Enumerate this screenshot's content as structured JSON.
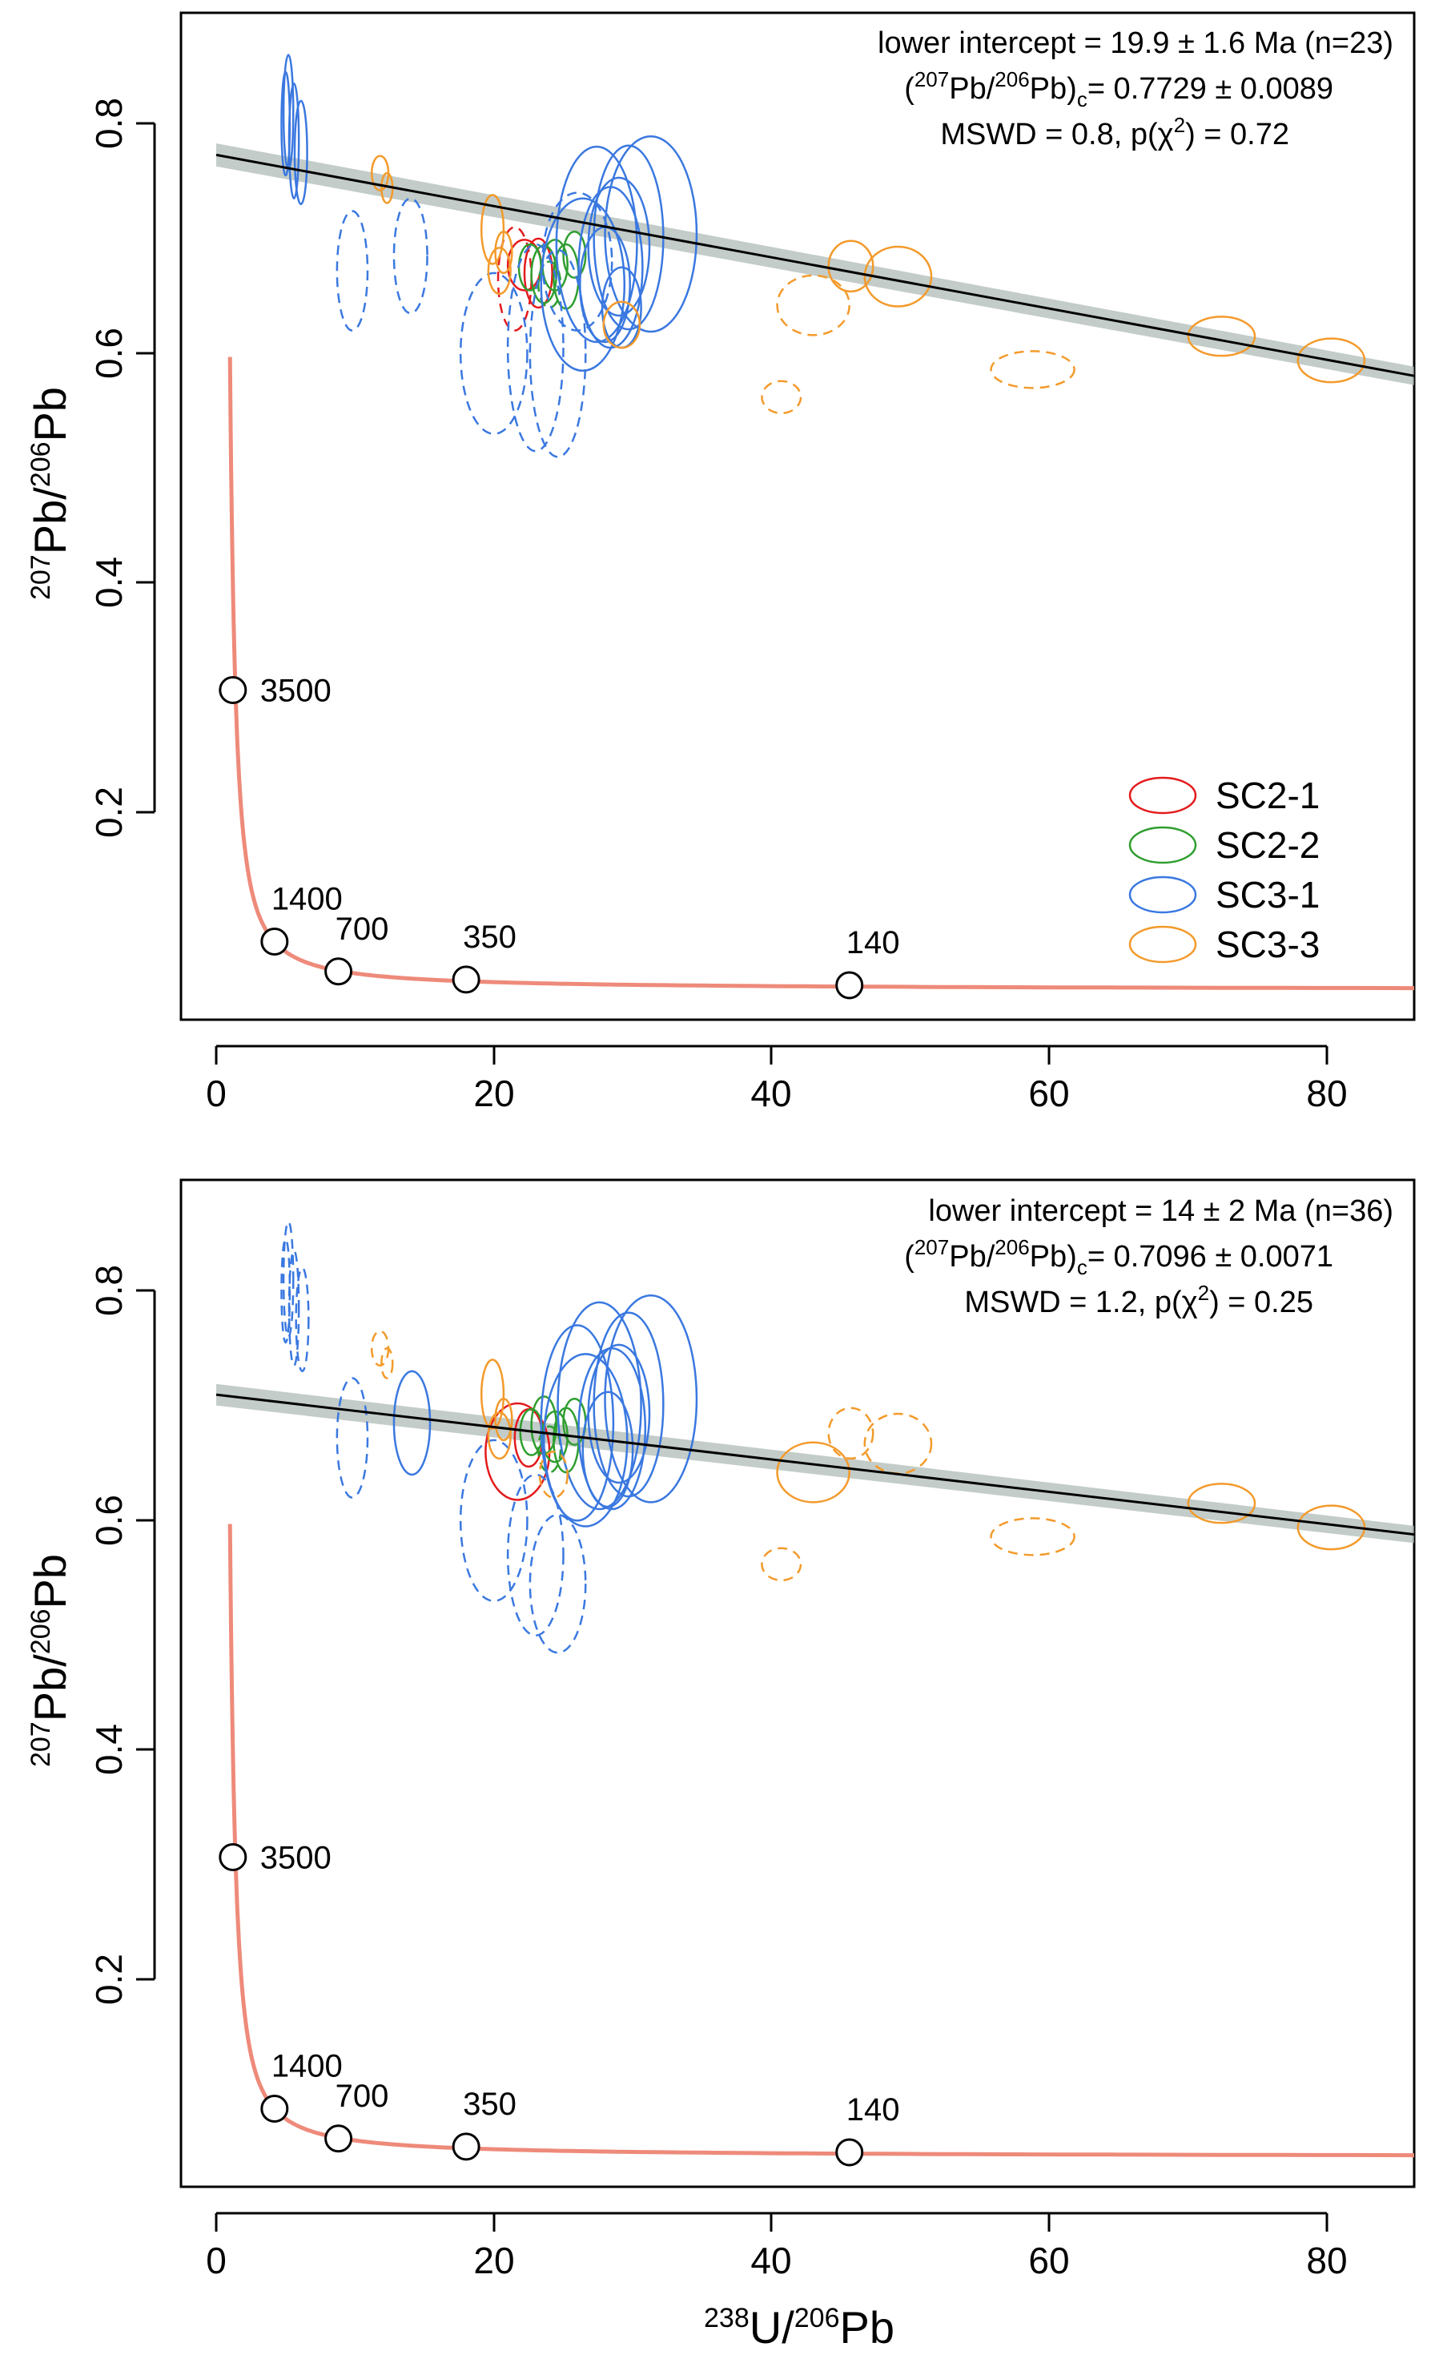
{
  "chart_data": [
    {
      "type": "scatter",
      "panel": "upper",
      "x_ticks": [
        0,
        20,
        40,
        60,
        80
      ],
      "y_ticks": [
        0.2,
        0.4,
        0.6,
        0.8
      ],
      "xlim": [
        -1.5,
        86.5
      ],
      "ylim": [
        -0.04,
        0.885
      ],
      "ylabel": {
        "sup": "207",
        "a": "Pb/",
        "sup2": "206",
        "b": "Pb"
      },
      "annotations": {
        "line1": "lower intercept = 19.9 ± 1.6 Ma (n=23)",
        "line2": {
          "open": "(",
          "sup1": "207",
          "mid": "Pb/",
          "sup2": "206",
          "close": "Pb)",
          "sub": "c",
          "rest": "= 0.7729 ± 0.0089"
        },
        "line3": {
          "pre": "MSWD = 0.8, p(χ",
          "sup": "2",
          "post": ") = 0.72"
        }
      },
      "legend": {
        "position": "right",
        "items": [
          {
            "label": "SC2-1",
            "color": "#e41a1c"
          },
          {
            "label": "SC2-2",
            "color": "#2f9e2f"
          },
          {
            "label": "SC3-1",
            "color": "#3a78e0"
          },
          {
            "label": "SC3-3",
            "color": "#f39a2b"
          }
        ]
      },
      "regression": {
        "intercept": 0.7729,
        "slope": -0.00223,
        "band": 0.008,
        "x_range": [
          0,
          86.5
        ]
      },
      "concordia_ages": [
        {
          "label": "3500",
          "x": 1.2,
          "y": 0.307
        },
        {
          "label": "1400",
          "x": 4.2,
          "y": 0.088
        },
        {
          "label": "700",
          "x": 8.8,
          "y": 0.062
        },
        {
          "label": "350",
          "x": 18.0,
          "y": 0.055
        },
        {
          "label": "140",
          "x": 45.6,
          "y": 0.05
        }
      ],
      "series": [
        {
          "name": "SC2-1",
          "points": [
            {
              "x": 21.5,
              "y": 0.665,
              "rx": 1.2,
              "ry": 0.045,
              "dashed": true
            },
            {
              "x": 23.2,
              "y": 0.67,
              "rx": 1.0,
              "ry": 0.03,
              "dashed": false
            },
            {
              "x": 22.2,
              "y": 0.677,
              "rx": 1.2,
              "ry": 0.022,
              "dashed": false
            }
          ]
        },
        {
          "name": "SC2-2",
          "points": [
            {
              "x": 22.6,
              "y": 0.675,
              "rx": 0.8,
              "ry": 0.02,
              "dashed": false
            },
            {
              "x": 23.6,
              "y": 0.669,
              "rx": 0.9,
              "ry": 0.025,
              "dashed": false
            },
            {
              "x": 24.4,
              "y": 0.677,
              "rx": 0.9,
              "ry": 0.022,
              "dashed": false
            },
            {
              "x": 25.2,
              "y": 0.667,
              "rx": 0.9,
              "ry": 0.028,
              "dashed": false
            },
            {
              "x": 24.0,
              "y": 0.66,
              "rx": 0.8,
              "ry": 0.02,
              "dashed": true
            },
            {
              "x": 25.8,
              "y": 0.686,
              "rx": 0.8,
              "ry": 0.02,
              "dashed": false
            }
          ]
        },
        {
          "name": "SC3-1",
          "points": [
            {
              "x": 5.2,
              "y": 0.81,
              "rx": 0.35,
              "ry": 0.05,
              "dashed": false
            },
            {
              "x": 5.6,
              "y": 0.785,
              "rx": 0.35,
              "ry": 0.05,
              "dashed": false
            },
            {
              "x": 6.1,
              "y": 0.775,
              "rx": 0.45,
              "ry": 0.045,
              "dashed": false
            },
            {
              "x": 5.0,
              "y": 0.8,
              "rx": 0.3,
              "ry": 0.045,
              "dashed": false
            },
            {
              "x": 9.8,
              "y": 0.672,
              "rx": 1.1,
              "ry": 0.052,
              "dashed": true
            },
            {
              "x": 14.0,
              "y": 0.685,
              "rx": 1.2,
              "ry": 0.05,
              "dashed": true
            },
            {
              "x": 20.0,
              "y": 0.6,
              "rx": 2.4,
              "ry": 0.07,
              "dashed": true
            },
            {
              "x": 23.0,
              "y": 0.605,
              "rx": 2.0,
              "ry": 0.09,
              "dashed": true
            },
            {
              "x": 24.6,
              "y": 0.6,
              "rx": 2.0,
              "ry": 0.09,
              "dashed": true
            },
            {
              "x": 26.0,
              "y": 0.68,
              "rx": 2.5,
              "ry": 0.06,
              "dashed": true
            },
            {
              "x": 26.4,
              "y": 0.66,
              "rx": 3.0,
              "ry": 0.075,
              "dashed": false
            },
            {
              "x": 27.4,
              "y": 0.695,
              "rx": 2.9,
              "ry": 0.085,
              "dashed": false
            },
            {
              "x": 28.4,
              "y": 0.675,
              "rx": 2.3,
              "ry": 0.07,
              "dashed": false
            },
            {
              "x": 29.0,
              "y": 0.693,
              "rx": 2.2,
              "ry": 0.06,
              "dashed": false
            },
            {
              "x": 29.7,
              "y": 0.701,
              "rx": 2.5,
              "ry": 0.08,
              "dashed": false
            },
            {
              "x": 31.3,
              "y": 0.704,
              "rx": 3.3,
              "ry": 0.085,
              "dashed": false
            },
            {
              "x": 28.0,
              "y": 0.66,
              "rx": 1.8,
              "ry": 0.05,
              "dashed": false
            },
            {
              "x": 29.2,
              "y": 0.64,
              "rx": 1.4,
              "ry": 0.035,
              "dashed": false
            }
          ]
        },
        {
          "name": "SC3-3",
          "points": [
            {
              "x": 11.8,
              "y": 0.757,
              "rx": 0.6,
              "ry": 0.015,
              "dashed": false
            },
            {
              "x": 12.3,
              "y": 0.744,
              "rx": 0.4,
              "ry": 0.013,
              "dashed": false
            },
            {
              "x": 19.9,
              "y": 0.708,
              "rx": 0.8,
              "ry": 0.03,
              "dashed": false
            },
            {
              "x": 20.4,
              "y": 0.672,
              "rx": 0.8,
              "ry": 0.02,
              "dashed": false
            },
            {
              "x": 20.7,
              "y": 0.688,
              "rx": 0.6,
              "ry": 0.018,
              "dashed": false
            },
            {
              "x": 29.2,
              "y": 0.625,
              "rx": 1.3,
              "ry": 0.02,
              "dashed": false
            },
            {
              "x": 40.7,
              "y": 0.562,
              "rx": 1.4,
              "ry": 0.014,
              "dashed": true
            },
            {
              "x": 43.0,
              "y": 0.642,
              "rx": 2.6,
              "ry": 0.026,
              "dashed": true
            },
            {
              "x": 45.7,
              "y": 0.676,
              "rx": 1.6,
              "ry": 0.022,
              "dashed": false
            },
            {
              "x": 49.1,
              "y": 0.667,
              "rx": 2.4,
              "ry": 0.026,
              "dashed": false
            },
            {
              "x": 58.8,
              "y": 0.586,
              "rx": 3.0,
              "ry": 0.016,
              "dashed": true
            },
            {
              "x": 72.4,
              "y": 0.615,
              "rx": 2.4,
              "ry": 0.017,
              "dashed": false
            },
            {
              "x": 80.3,
              "y": 0.594,
              "rx": 2.4,
              "ry": 0.019,
              "dashed": false
            }
          ]
        }
      ]
    },
    {
      "type": "scatter",
      "panel": "lower",
      "x_ticks": [
        0,
        20,
        40,
        60,
        80
      ],
      "y_ticks": [
        0.2,
        0.4,
        0.6,
        0.8
      ],
      "xlim": [
        -1.5,
        86.5
      ],
      "ylim": [
        -0.04,
        0.885
      ],
      "xlabel": {
        "sup": "238",
        "a": "U/",
        "sup2": "206",
        "b": "Pb"
      },
      "ylabel": {
        "sup": "207",
        "a": "Pb/",
        "sup2": "206",
        "b": "Pb"
      },
      "annotations": {
        "line1": "lower intercept = 14 ± 2 Ma (n=36)",
        "line2": {
          "open": "(",
          "sup1": "207",
          "mid": "Pb/",
          "sup2": "206",
          "close": "Pb)",
          "sub": "c",
          "rest": "= 0.7096 ± 0.0071"
        },
        "line3": {
          "pre": "MSWD = 1.2, p(χ",
          "sup": "2",
          "post": ") = 0.25"
        }
      },
      "regression": {
        "intercept": 0.7096,
        "slope": -0.00141,
        "band": 0.0075,
        "x_range": [
          0,
          86.5
        ]
      },
      "concordia_ages": [
        {
          "label": "3500",
          "x": 1.2,
          "y": 0.307
        },
        {
          "label": "1400",
          "x": 4.2,
          "y": 0.088
        },
        {
          "label": "700",
          "x": 8.8,
          "y": 0.062
        },
        {
          "label": "350",
          "x": 18.0,
          "y": 0.055
        },
        {
          "label": "140",
          "x": 45.6,
          "y": 0.05
        }
      ],
      "series": [
        {
          "name": "SC2-1",
          "points": [
            {
              "x": 21.7,
              "y": 0.66,
              "rx": 2.3,
              "ry": 0.042,
              "dashed": false
            },
            {
              "x": 22.5,
              "y": 0.672,
              "rx": 1.0,
              "ry": 0.025,
              "dashed": false
            }
          ]
        },
        {
          "name": "SC2-2",
          "points": [
            {
              "x": 22.7,
              "y": 0.677,
              "rx": 0.8,
              "ry": 0.02,
              "dashed": false
            },
            {
              "x": 23.6,
              "y": 0.683,
              "rx": 0.9,
              "ry": 0.025,
              "dashed": false
            },
            {
              "x": 24.4,
              "y": 0.673,
              "rx": 0.9,
              "ry": 0.022,
              "dashed": false
            },
            {
              "x": 25.2,
              "y": 0.67,
              "rx": 0.9,
              "ry": 0.028,
              "dashed": false
            },
            {
              "x": 24.0,
              "y": 0.662,
              "rx": 0.8,
              "ry": 0.02,
              "dashed": true
            },
            {
              "x": 25.8,
              "y": 0.686,
              "rx": 0.8,
              "ry": 0.02,
              "dashed": false
            }
          ]
        },
        {
          "name": "SC3-1",
          "points": [
            {
              "x": 5.2,
              "y": 0.81,
              "rx": 0.35,
              "ry": 0.05,
              "dashed": true
            },
            {
              "x": 5.6,
              "y": 0.785,
              "rx": 0.35,
              "ry": 0.05,
              "dashed": true
            },
            {
              "x": 6.2,
              "y": 0.775,
              "rx": 0.45,
              "ry": 0.045,
              "dashed": true
            },
            {
              "x": 5.0,
              "y": 0.8,
              "rx": 0.3,
              "ry": 0.045,
              "dashed": true
            },
            {
              "x": 9.8,
              "y": 0.672,
              "rx": 1.1,
              "ry": 0.052,
              "dashed": true
            },
            {
              "x": 14.1,
              "y": 0.685,
              "rx": 1.3,
              "ry": 0.045,
              "dashed": false
            },
            {
              "x": 20.0,
              "y": 0.6,
              "rx": 2.4,
              "ry": 0.07,
              "dashed": true
            },
            {
              "x": 23.0,
              "y": 0.57,
              "rx": 2.0,
              "ry": 0.07,
              "dashed": true
            },
            {
              "x": 24.6,
              "y": 0.545,
              "rx": 2.0,
              "ry": 0.06,
              "dashed": true
            },
            {
              "x": 26.0,
              "y": 0.685,
              "rx": 2.6,
              "ry": 0.085,
              "dashed": false
            },
            {
              "x": 26.6,
              "y": 0.67,
              "rx": 3.0,
              "ry": 0.075,
              "dashed": false
            },
            {
              "x": 27.6,
              "y": 0.7,
              "rx": 3.0,
              "ry": 0.09,
              "dashed": false
            },
            {
              "x": 28.5,
              "y": 0.68,
              "rx": 2.4,
              "ry": 0.07,
              "dashed": false
            },
            {
              "x": 29.0,
              "y": 0.693,
              "rx": 2.2,
              "ry": 0.06,
              "dashed": false
            },
            {
              "x": 29.7,
              "y": 0.701,
              "rx": 2.5,
              "ry": 0.08,
              "dashed": false
            },
            {
              "x": 31.3,
              "y": 0.706,
              "rx": 3.3,
              "ry": 0.09,
              "dashed": false
            },
            {
              "x": 28.2,
              "y": 0.662,
              "rx": 1.8,
              "ry": 0.05,
              "dashed": false
            }
          ]
        },
        {
          "name": "SC3-3",
          "points": [
            {
              "x": 11.8,
              "y": 0.75,
              "rx": 0.6,
              "ry": 0.015,
              "dashed": true
            },
            {
              "x": 12.3,
              "y": 0.737,
              "rx": 0.4,
              "ry": 0.013,
              "dashed": true
            },
            {
              "x": 19.9,
              "y": 0.71,
              "rx": 0.8,
              "ry": 0.03,
              "dashed": false
            },
            {
              "x": 20.4,
              "y": 0.674,
              "rx": 0.8,
              "ry": 0.02,
              "dashed": false
            },
            {
              "x": 20.7,
              "y": 0.688,
              "rx": 0.6,
              "ry": 0.018,
              "dashed": false
            },
            {
              "x": 24.3,
              "y": 0.64,
              "rx": 1.0,
              "ry": 0.02,
              "dashed": true
            },
            {
              "x": 40.7,
              "y": 0.562,
              "rx": 1.4,
              "ry": 0.014,
              "dashed": true
            },
            {
              "x": 43.0,
              "y": 0.642,
              "rx": 2.6,
              "ry": 0.026,
              "dashed": false
            },
            {
              "x": 45.7,
              "y": 0.676,
              "rx": 1.6,
              "ry": 0.022,
              "dashed": true
            },
            {
              "x": 49.1,
              "y": 0.667,
              "rx": 2.4,
              "ry": 0.026,
              "dashed": true
            },
            {
              "x": 58.8,
              "y": 0.586,
              "rx": 3.0,
              "ry": 0.016,
              "dashed": true
            },
            {
              "x": 72.4,
              "y": 0.615,
              "rx": 2.4,
              "ry": 0.017,
              "dashed": false
            },
            {
              "x": 80.3,
              "y": 0.594,
              "rx": 2.4,
              "ry": 0.019,
              "dashed": false
            }
          ]
        }
      ]
    }
  ]
}
